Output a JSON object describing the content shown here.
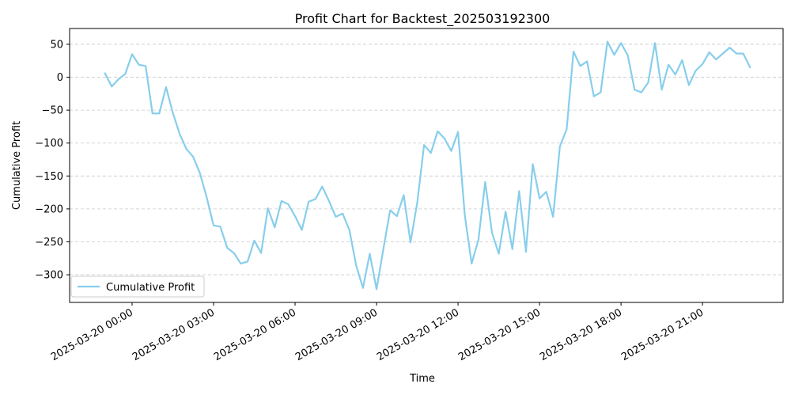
{
  "chart_data": {
    "type": "line",
    "title": "Profit Chart for Backtest_202503192300",
    "xlabel": "Time",
    "ylabel": "Cumulative Profit",
    "x_start": "2025-03-19 23:00",
    "x_step_minutes": 15,
    "xlim": [
      "2025-03-19 21:42",
      "2025-03-20 23:58"
    ],
    "ylim": [
      -342,
      74
    ],
    "x_ticks": [
      "2025-03-20 00:00",
      "2025-03-20 03:00",
      "2025-03-20 06:00",
      "2025-03-20 09:00",
      "2025-03-20 12:00",
      "2025-03-20 15:00",
      "2025-03-20 18:00",
      "2025-03-20 21:00"
    ],
    "y_ticks": [
      "50",
      "0",
      "−50",
      "−100",
      "−150",
      "−200",
      "−250",
      "−300"
    ],
    "grid": "y-dashed",
    "legend_position": "lower-left",
    "series": [
      {
        "name": "Cumulative Profit",
        "color": "#87CEEB",
        "values": [
          6,
          -14,
          -3,
          5,
          35,
          19,
          17,
          -55,
          -55,
          -15,
          -54,
          -86,
          -109,
          -121,
          -146,
          -183,
          -225,
          -227,
          -259,
          -267,
          -283,
          -280,
          -248,
          -267,
          -199,
          -228,
          -188,
          -193,
          -211,
          -232,
          -189,
          -185,
          -166,
          -188,
          -212,
          -207,
          -232,
          -286,
          -320,
          -268,
          -322,
          -261,
          -202,
          -211,
          -179,
          -251,
          -190,
          -103,
          -115,
          -82,
          -93,
          -112,
          -83,
          -210,
          -283,
          -247,
          -159,
          -236,
          -268,
          -204,
          -261,
          -173,
          -265,
          -132,
          -184,
          -174,
          -212,
          -105,
          -79,
          39,
          17,
          24,
          -29,
          -23,
          54,
          34,
          52,
          33,
          -19,
          -23,
          -8,
          52,
          -19,
          19,
          4,
          26,
          -12,
          10,
          20,
          38,
          27,
          36,
          45,
          36,
          36,
          15
        ]
      }
    ]
  }
}
